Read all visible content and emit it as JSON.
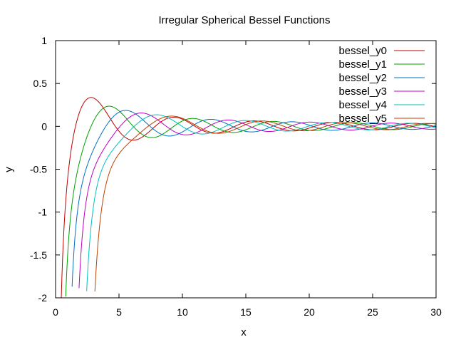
{
  "chart_data": {
    "type": "line",
    "title": "Irregular Spherical Bessel Functions",
    "xlabel": "x",
    "ylabel": "y",
    "xlim": [
      0,
      30
    ],
    "ylim": [
      -2,
      1
    ],
    "xticks": [
      0,
      5,
      10,
      15,
      20,
      25,
      30
    ],
    "yticks": [
      -2,
      -1.5,
      -1,
      -0.5,
      0,
      0.5,
      1
    ],
    "xtick_labels": [
      "0",
      "5",
      "10",
      "15",
      "20",
      "25",
      "30"
    ],
    "ytick_labels": [
      "-2",
      "-1.5",
      "-1",
      "-0.5",
      "0",
      "0.5",
      "1"
    ],
    "grid": false,
    "legend_position": "top-right",
    "x_sampling": {
      "start": 0.3,
      "end": 30,
      "step": 0.05
    },
    "series": [
      {
        "name": "bessel_y0",
        "order": 0,
        "color": "#c00000"
      },
      {
        "name": "bessel_y1",
        "order": 1,
        "color": "#00a000"
      },
      {
        "name": "bessel_y2",
        "order": 2,
        "color": "#0070c0"
      },
      {
        "name": "bessel_y3",
        "order": 3,
        "color": "#c000c0"
      },
      {
        "name": "bessel_y4",
        "order": 4,
        "color": "#00c0c0"
      },
      {
        "name": "bessel_y5",
        "order": 5,
        "color": "#c04000"
      }
    ]
  }
}
